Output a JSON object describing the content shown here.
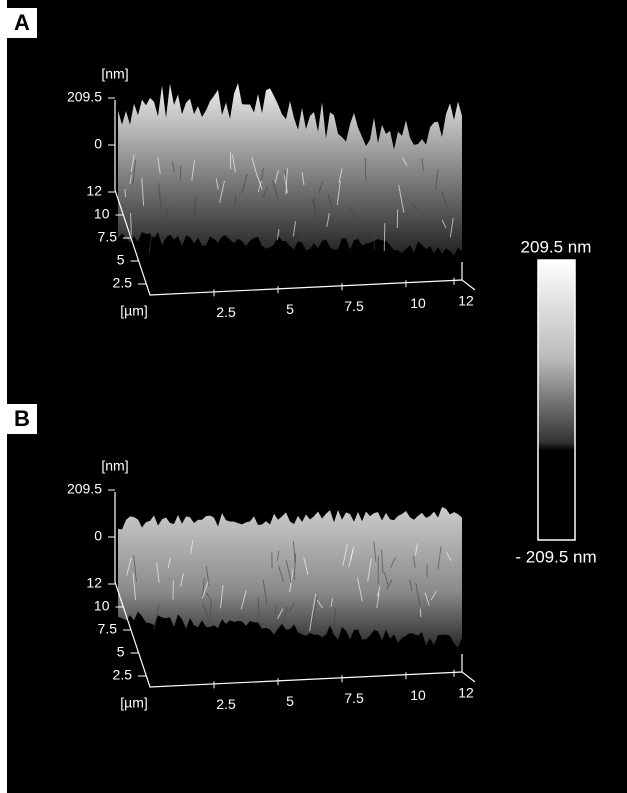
{
  "colorbar": {
    "max_label": "209.5 nm",
    "min_label": "- 209.5 nm"
  },
  "panels": [
    {
      "label": "A",
      "z_unit": "[nm]",
      "z_ticks": [
        "209.5",
        "0"
      ],
      "y_ticks": [
        "12",
        "10",
        "7.5",
        "5",
        "2.5"
      ],
      "xy_unit": "[µm]",
      "x_ticks": [
        "2.5",
        "5",
        "7.5",
        "10",
        "12"
      ]
    },
    {
      "label": "B",
      "z_unit": "[nm]",
      "z_ticks": [
        "209.5",
        "0"
      ],
      "y_ticks": [
        "12",
        "10",
        "7.5",
        "5",
        "2.5"
      ],
      "xy_unit": "[µm]",
      "x_ticks": [
        "2.5",
        "5",
        "7.5",
        "10",
        "12"
      ]
    }
  ]
}
